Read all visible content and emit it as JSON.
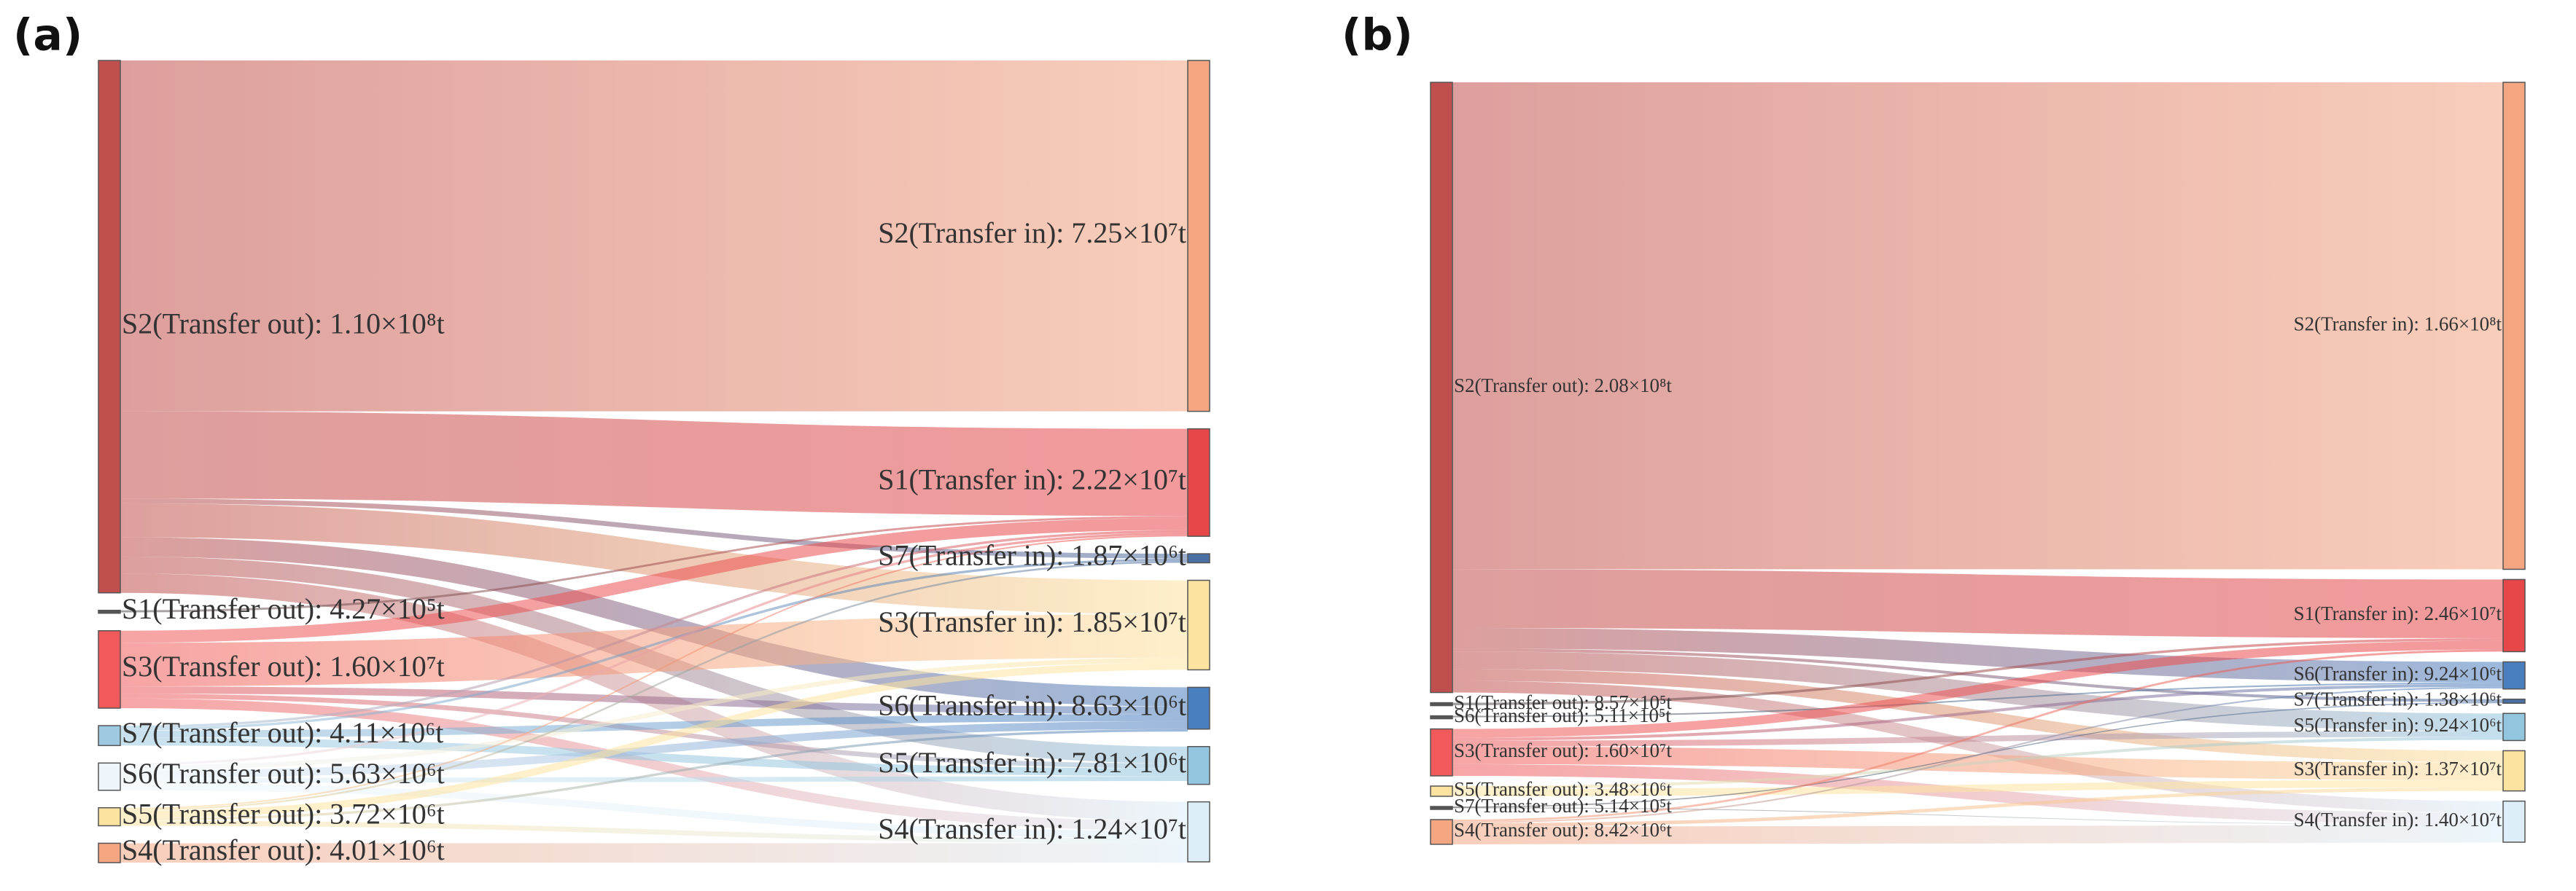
{
  "chart_data": [
    {
      "type": "sankey",
      "panel_label": "(a)",
      "sources": [
        {
          "label": "S2(Transfer out): 1.10×10⁸t",
          "value": 110000000,
          "color": "#c0504d"
        },
        {
          "label": "S1(Transfer out): 4.27×10⁵t",
          "value": 427000,
          "color": "#555555"
        },
        {
          "label": "S3(Transfer out): 1.60×10⁷t",
          "value": 16000000,
          "color": "#f05a5a"
        },
        {
          "label": "S7(Transfer out): 4.11×10⁶t",
          "value": 4110000,
          "color": "#9ecae1"
        },
        {
          "label": "S6(Transfer out): 5.63×10⁶t",
          "value": 5630000,
          "color": "#eef6fc"
        },
        {
          "label": "S5(Transfer out): 3.72×10⁶t",
          "value": 3720000,
          "color": "#fde3a0"
        },
        {
          "label": "S4(Transfer out): 4.01×10⁶t",
          "value": 4010000,
          "color": "#f4a582"
        }
      ],
      "targets": [
        {
          "label": "S2(Transfer in): 7.25×10⁷t",
          "value": 72500000,
          "color": "#f4a582"
        },
        {
          "label": "S1(Transfer in): 2.22×10⁷t",
          "value": 22200000,
          "color": "#e8474a"
        },
        {
          "label": "S7(Transfer in): 1.87×10⁶t",
          "value": 1870000,
          "color": "#4a6fa5"
        },
        {
          "label": "S3(Transfer in): 1.85×10⁷t",
          "value": 18500000,
          "color": "#fde3a0"
        },
        {
          "label": "S6(Transfer in): 8.63×10⁶t",
          "value": 8630000,
          "color": "#4a7fbf"
        },
        {
          "label": "S5(Transfer in): 7.81×10⁶t",
          "value": 7810000,
          "color": "#92c5de"
        },
        {
          "label": "S4(Transfer in): 1.24×10⁷t",
          "value": 12400000,
          "color": "#ddeef8"
        }
      ],
      "links": [
        {
          "source": 0,
          "target": 0,
          "value": 72500000
        },
        {
          "source": 0,
          "target": 1,
          "value": 18000000
        },
        {
          "source": 0,
          "target": 2,
          "value": 1000000
        },
        {
          "source": 0,
          "target": 3,
          "value": 7000000
        },
        {
          "source": 0,
          "target": 4,
          "value": 4000000
        },
        {
          "source": 0,
          "target": 5,
          "value": 3500000
        },
        {
          "source": 0,
          "target": 6,
          "value": 4000000
        },
        {
          "source": 1,
          "target": 1,
          "value": 427000
        },
        {
          "source": 2,
          "target": 1,
          "value": 2500000
        },
        {
          "source": 2,
          "target": 3,
          "value": 9000000
        },
        {
          "source": 2,
          "target": 4,
          "value": 1500000
        },
        {
          "source": 2,
          "target": 5,
          "value": 1000000
        },
        {
          "source": 2,
          "target": 6,
          "value": 2000000
        },
        {
          "source": 3,
          "target": 1,
          "value": 500000
        },
        {
          "source": 3,
          "target": 2,
          "value": 500000
        },
        {
          "source": 3,
          "target": 4,
          "value": 1500000
        },
        {
          "source": 3,
          "target": 5,
          "value": 1610000
        },
        {
          "source": 4,
          "target": 1,
          "value": 500000
        },
        {
          "source": 4,
          "target": 3,
          "value": 1000000
        },
        {
          "source": 4,
          "target": 4,
          "value": 1630000
        },
        {
          "source": 4,
          "target": 5,
          "value": 1000000
        },
        {
          "source": 4,
          "target": 6,
          "value": 1500000
        },
        {
          "source": 5,
          "target": 1,
          "value": 300000
        },
        {
          "source": 5,
          "target": 2,
          "value": 370000
        },
        {
          "source": 5,
          "target": 3,
          "value": 1500000
        },
        {
          "source": 5,
          "target": 4,
          "value": 500000
        },
        {
          "source": 5,
          "target": 6,
          "value": 1050000
        },
        {
          "source": 6,
          "target": 6,
          "value": 4010000
        }
      ]
    },
    {
      "type": "sankey",
      "panel_label": "(b)",
      "sources": [
        {
          "label": "S2(Transfer out): 2.08×10⁸t",
          "value": 208000000,
          "color": "#c0504d"
        },
        {
          "label": "S1(Transfer out): 8.57×10⁵t",
          "value": 857000,
          "color": "#555555"
        },
        {
          "label": "S6(Transfer out): 5.11×10⁵t",
          "value": 511000,
          "color": "#555555"
        },
        {
          "label": "S3(Transfer out): 1.60×10⁷t",
          "value": 16000000,
          "color": "#f05a5a"
        },
        {
          "label": "S5(Transfer out): 3.48×10⁶t",
          "value": 3480000,
          "color": "#fde3a0"
        },
        {
          "label": "S7(Transfer out): 5.14×10⁵t",
          "value": 514000,
          "color": "#555555"
        },
        {
          "label": "S4(Transfer out): 8.42×10⁶t",
          "value": 8420000,
          "color": "#f4a582"
        }
      ],
      "targets": [
        {
          "label": "S2(Transfer in): 1.66×10⁸t",
          "value": 166000000,
          "color": "#f4a582"
        },
        {
          "label": "S1(Transfer in): 2.46×10⁷t",
          "value": 24600000,
          "color": "#e8474a"
        },
        {
          "label": "S6(Transfer in): 9.24×10⁶t",
          "value": 9240000,
          "color": "#4a7fbf"
        },
        {
          "label": "S7(Transfer in): 1.38×10⁶t",
          "value": 1380000,
          "color": "#4a6fa5"
        },
        {
          "label": "S5(Transfer in): 9.24×10⁶t",
          "value": 9240000,
          "color": "#92c5de"
        },
        {
          "label": "S3(Transfer in): 1.37×10⁷t",
          "value": 13700000,
          "color": "#fde3a0"
        },
        {
          "label": "S4(Transfer in): 1.40×10⁷t",
          "value": 14000000,
          "color": "#ddeef8"
        }
      ],
      "links": [
        {
          "source": 0,
          "target": 0,
          "value": 166000000
        },
        {
          "source": 0,
          "target": 1,
          "value": 20000000
        },
        {
          "source": 0,
          "target": 2,
          "value": 7000000
        },
        {
          "source": 0,
          "target": 3,
          "value": 1000000
        },
        {
          "source": 0,
          "target": 4,
          "value": 6000000
        },
        {
          "source": 0,
          "target": 5,
          "value": 4000000
        },
        {
          "source": 0,
          "target": 6,
          "value": 4000000
        },
        {
          "source": 1,
          "target": 1,
          "value": 857000
        },
        {
          "source": 2,
          "target": 2,
          "value": 511000
        },
        {
          "source": 3,
          "target": 1,
          "value": 3000000
        },
        {
          "source": 3,
          "target": 2,
          "value": 1000000
        },
        {
          "source": 3,
          "target": 4,
          "value": 2000000
        },
        {
          "source": 3,
          "target": 5,
          "value": 6000000
        },
        {
          "source": 3,
          "target": 6,
          "value": 4000000
        },
        {
          "source": 4,
          "target": 4,
          "value": 1000000
        },
        {
          "source": 4,
          "target": 5,
          "value": 2480000
        },
        {
          "source": 5,
          "target": 3,
          "value": 380000
        },
        {
          "source": 5,
          "target": 6,
          "value": 134000
        },
        {
          "source": 6,
          "target": 1,
          "value": 700000
        },
        {
          "source": 6,
          "target": 2,
          "value": 520000
        },
        {
          "source": 6,
          "target": 5,
          "value": 1200000
        },
        {
          "source": 6,
          "target": 6,
          "value": 6000000
        }
      ]
    }
  ]
}
